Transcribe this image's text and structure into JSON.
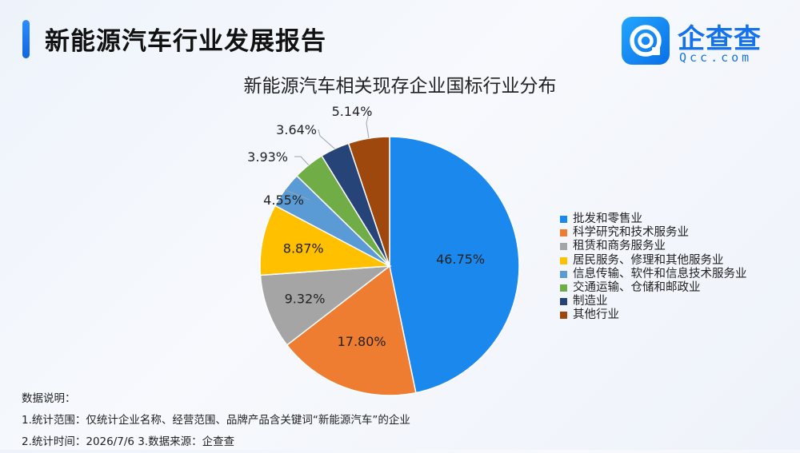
{
  "header": {
    "title": "新能源汽车行业发展报告",
    "logo_name": "企查查",
    "logo_url": "Qcc.com"
  },
  "chart_data": {
    "type": "pie",
    "title": "新能源汽车相关现存企业国标行业分布",
    "unit": "%",
    "legend_position": "right",
    "slices": [
      {
        "name": "批发和零售业",
        "value": 46.75,
        "label": "46.75%",
        "color": "#1a88ec"
      },
      {
        "name": "科学研究和技术服务业",
        "value": 17.8,
        "label": "17.80%",
        "color": "#ee7d31"
      },
      {
        "name": "租赁和商务服务业",
        "value": 9.32,
        "label": "9.32%",
        "color": "#a5a5a5"
      },
      {
        "name": "居民服务、修理和其他服务业",
        "value": 8.87,
        "label": "8.87%",
        "color": "#ffc000"
      },
      {
        "name": "信息传输、软件和信息技术服务业",
        "value": 4.55,
        "label": "4.55%",
        "color": "#5b9bd5"
      },
      {
        "name": "交通运输、仓储和邮政业",
        "value": 3.93,
        "label": "3.93%",
        "color": "#70ad47"
      },
      {
        "name": "制造业",
        "value": 3.64,
        "label": "3.64%",
        "color": "#264478"
      },
      {
        "name": "其他行业",
        "value": 5.14,
        "label": "5.14%",
        "color": "#9e480e"
      }
    ]
  },
  "notes": {
    "heading": "数据说明：",
    "line1": "1.统计范围：仅统计企业名称、经营范围、品牌产品含关键词“新能源汽车”的企业",
    "line2": "2.统计时间：2026/7/6  3.数据来源：企查查"
  }
}
